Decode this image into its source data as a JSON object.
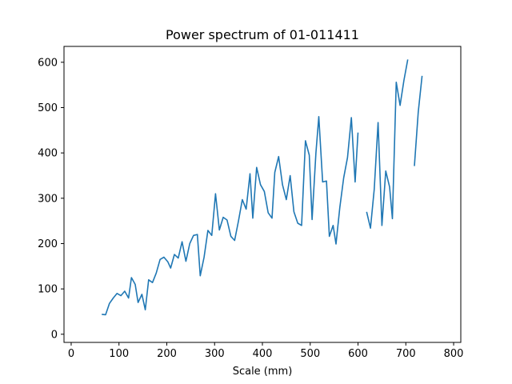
{
  "chart_data": {
    "type": "line",
    "title": "Power spectrum of 01-011411",
    "xlabel": "Scale (mm)",
    "ylabel": "",
    "xlim": [
      -15,
      815
    ],
    "ylim": [
      -18,
      635
    ],
    "xticks": [
      0,
      100,
      200,
      300,
      400,
      500,
      600,
      700,
      800
    ],
    "yticks": [
      0,
      100,
      200,
      300,
      400,
      500,
      600
    ],
    "grid": false,
    "color": "#1f77b4",
    "series": [
      {
        "segments": [
          [
            [
              64,
              44
            ],
            [
              72,
              43
            ],
            [
              80,
              68
            ],
            [
              88,
              80
            ],
            [
              96,
              90
            ],
            [
              104,
              85
            ],
            [
              112,
              95
            ],
            [
              120,
              80
            ],
            [
              126,
              125
            ],
            [
              134,
              110
            ],
            [
              140,
              70
            ],
            [
              148,
              88
            ],
            [
              155,
              54
            ],
            [
              162,
              120
            ],
            [
              170,
              114
            ],
            [
              178,
              135
            ],
            [
              186,
              165
            ],
            [
              194,
              170
            ],
            [
              202,
              160
            ],
            [
              208,
              146
            ],
            [
              216,
              176
            ],
            [
              224,
              168
            ],
            [
              232,
              204
            ],
            [
              240,
              161
            ],
            [
              248,
              200
            ],
            [
              256,
              218
            ],
            [
              264,
              220
            ],
            [
              270,
              129
            ],
            [
              278,
              170
            ],
            [
              286,
              229
            ],
            [
              294,
              218
            ],
            [
              302,
              310
            ],
            [
              310,
              230
            ],
            [
              318,
              258
            ],
            [
              326,
              252
            ],
            [
              334,
              216
            ],
            [
              342,
              207
            ],
            [
              350,
              250
            ],
            [
              358,
              297
            ],
            [
              366,
              276
            ],
            [
              374,
              354
            ],
            [
              380,
              256
            ],
            [
              388,
              368
            ],
            [
              396,
              330
            ],
            [
              404,
              315
            ],
            [
              412,
              268
            ],
            [
              420,
              256
            ],
            [
              426,
              357
            ],
            [
              434,
              392
            ],
            [
              442,
              330
            ],
            [
              450,
              297
            ],
            [
              458,
              350
            ],
            [
              466,
              270
            ],
            [
              474,
              245
            ],
            [
              482,
              240
            ],
            [
              490,
              427
            ],
            [
              498,
              395
            ],
            [
              504,
              253
            ],
            [
              512,
              400
            ],
            [
              518,
              480
            ],
            [
              526,
              336
            ],
            [
              534,
              338
            ],
            [
              540,
              216
            ],
            [
              548,
              240
            ],
            [
              554,
              199
            ],
            [
              562,
              280
            ],
            [
              570,
              345
            ],
            [
              578,
              390
            ],
            [
              586,
              478
            ],
            [
              594,
              336
            ],
            [
              600,
              445
            ]
          ],
          [
            [
              618,
              270
            ],
            [
              626,
              234
            ],
            [
              634,
              320
            ],
            [
              642,
              467
            ],
            [
              650,
              240
            ],
            [
              658,
              360
            ],
            [
              666,
              325
            ],
            [
              672,
              255
            ],
            [
              680,
              556
            ],
            [
              688,
              505
            ],
            [
              696,
              560
            ],
            [
              704,
              606
            ]
          ],
          [
            [
              718,
              371
            ],
            [
              726,
              490
            ],
            [
              734,
              570
            ]
          ]
        ]
      }
    ]
  }
}
